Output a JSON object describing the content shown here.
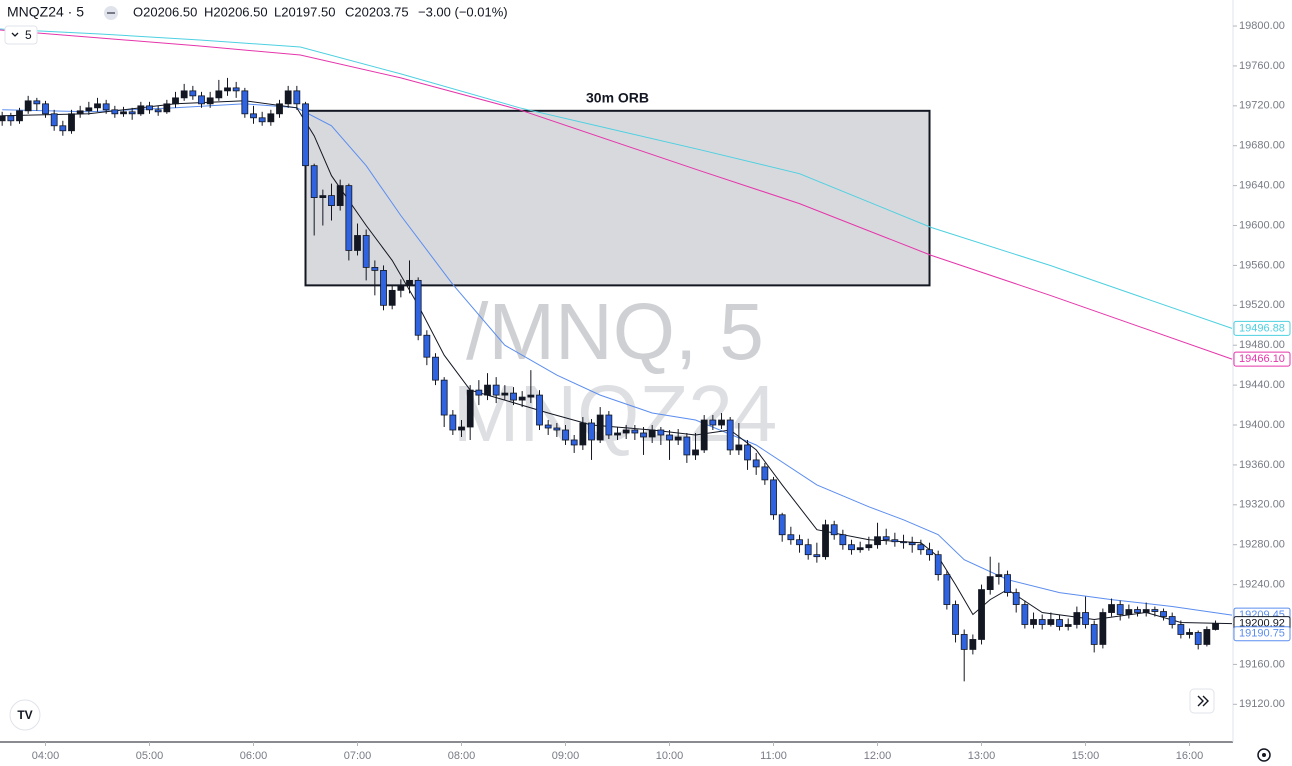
{
  "header": {
    "symbol": "MNQZ24 · 5",
    "open": "O20206.50",
    "high": "H20206.50",
    "low": "L20197.50",
    "close": "C20203.75",
    "change": "−3.00 (−0.01%)",
    "interval": "5"
  },
  "chart_data": {
    "type": "candlestick",
    "watermark": {
      "line1": "/MNQ, 5",
      "line2": "MNQZ24"
    },
    "up_color": "#131722",
    "down_color": "#2f63e0",
    "xlim": [
      -0.25,
      141.9
    ],
    "xticks": [
      {
        "value": 5,
        "label": "04:00"
      },
      {
        "value": 17,
        "label": "05:00"
      },
      {
        "value": 29,
        "label": "06:00"
      },
      {
        "value": 41,
        "label": "07:00"
      },
      {
        "value": 53,
        "label": "08:00"
      },
      {
        "value": 65,
        "label": "09:00"
      },
      {
        "value": 77,
        "label": "10:00"
      },
      {
        "value": 89,
        "label": "11:00"
      },
      {
        "value": 101,
        "label": "12:00"
      },
      {
        "value": 113,
        "label": "13:00"
      },
      {
        "value": 125,
        "label": "15:00"
      },
      {
        "value": 137,
        "label": "16:00"
      }
    ],
    "ylim": [
      19082.2,
      19826.1
    ],
    "yticks": [
      {
        "value": 19120,
        "label": "19120.00"
      },
      {
        "value": 19160,
        "label": "19160.00"
      },
      {
        "value": 19200,
        "label": "19200.00"
      },
      {
        "value": 19240,
        "label": "19240.00"
      },
      {
        "value": 19280,
        "label": "19280.00"
      },
      {
        "value": 19320,
        "label": "19320.00"
      },
      {
        "value": 19360,
        "label": "19360.00"
      },
      {
        "value": 19400,
        "label": "19400.00"
      },
      {
        "value": 19440,
        "label": "19440.00"
      },
      {
        "value": 19480,
        "label": "19480.00"
      },
      {
        "value": 19520,
        "label": "19520.00"
      },
      {
        "value": 19560,
        "label": "19560.00"
      },
      {
        "value": 19600,
        "label": "19600.00"
      },
      {
        "value": 19640,
        "label": "19640.00"
      },
      {
        "value": 19680,
        "label": "19680.00"
      },
      {
        "value": 19720,
        "label": "19720.00"
      },
      {
        "value": 19760,
        "label": "19760.00"
      },
      {
        "value": 19800,
        "label": "19800.00"
      }
    ],
    "candles": {
      "open": [
        19705,
        19710,
        19705,
        19715,
        19725,
        19722,
        19712,
        19700,
        19695,
        19712,
        19715,
        19718,
        19722,
        19716,
        19712,
        19714,
        19712,
        19720,
        19716,
        19714,
        19722,
        19728,
        19735,
        19730,
        19722,
        19728,
        19735,
        19738,
        19735,
        19712,
        19708,
        19704,
        19712,
        19722,
        19735,
        19722,
        19660,
        19628,
        19630,
        19620,
        19640,
        19575,
        19590,
        19558,
        19555,
        19520,
        19535,
        19540,
        19545,
        19490,
        19468,
        19445,
        19410,
        19395,
        19398,
        19435,
        19430,
        19440,
        19430,
        19432,
        19425,
        19428,
        19430,
        19400,
        19397,
        19395,
        19385,
        19380,
        19402,
        19385,
        19410,
        19390,
        19392,
        19395,
        19392,
        19388,
        19395,
        19390,
        19385,
        19388,
        19370,
        19375,
        19405,
        19400,
        19405,
        19375,
        19380,
        19365,
        19358,
        19345,
        19310,
        19290,
        19285,
        19280,
        19270,
        19268,
        19300,
        19290,
        19280,
        19275,
        19277,
        19280,
        19288,
        19285,
        19283,
        19282,
        19280,
        19275,
        19270,
        19250,
        19220,
        19190,
        19175,
        19185,
        19235,
        19248,
        19250,
        19232,
        19220,
        19200,
        19205,
        19200,
        19205,
        19198,
        19200,
        19212,
        19200,
        19180,
        19212,
        19220,
        19210,
        19215,
        19212,
        19215,
        19213,
        19208,
        19200,
        19190,
        19192,
        19180,
        19195
      ],
      "high": [
        19714,
        19713,
        19718,
        19730,
        19728,
        19725,
        19716,
        19705,
        19716,
        19720,
        19724,
        19728,
        19726,
        19720,
        19719,
        19718,
        19724,
        19724,
        19720,
        19726,
        19734,
        19742,
        19740,
        19734,
        19734,
        19746,
        19748,
        19744,
        19738,
        19720,
        19714,
        19716,
        19726,
        19740,
        19740,
        19724,
        19662,
        19636,
        19642,
        19646,
        19642,
        19602,
        19596,
        19565,
        19560,
        19540,
        19546,
        19565,
        19548,
        19495,
        19472,
        19448,
        19415,
        19405,
        19440,
        19445,
        19452,
        19448,
        19440,
        19438,
        19434,
        19455,
        19435,
        19405,
        19402,
        19400,
        19390,
        19408,
        19406,
        19418,
        19414,
        19398,
        19400,
        19400,
        19398,
        19400,
        19398,
        19395,
        19396,
        19392,
        19392,
        19410,
        19410,
        19412,
        19408,
        19402,
        19385,
        19372,
        19362,
        19348,
        19312,
        19298,
        19290,
        19286,
        19282,
        19305,
        19304,
        19295,
        19285,
        19283,
        19288,
        19302,
        19296,
        19292,
        19290,
        19288,
        19285,
        19282,
        19274,
        19254,
        19224,
        19195,
        19190,
        19240,
        19268,
        19262,
        19254,
        19236,
        19224,
        19212,
        19210,
        19212,
        19210,
        19206,
        19218,
        19228,
        19204,
        19216,
        19226,
        19224,
        19220,
        19218,
        19222,
        19218,
        19216,
        19212,
        19204,
        19196,
        19194,
        19198,
        19204
      ],
      "low": [
        19700,
        19700,
        19702,
        19712,
        19715,
        19708,
        19695,
        19690,
        19692,
        19708,
        19711,
        19714,
        19712,
        19708,
        19709,
        19706,
        19710,
        19712,
        19710,
        19712,
        19718,
        19725,
        19726,
        19718,
        19718,
        19725,
        19730,
        19728,
        19708,
        19702,
        19700,
        19700,
        19708,
        19718,
        19716,
        19655,
        19590,
        19600,
        19605,
        19615,
        19565,
        19570,
        19545,
        19530,
        19515,
        19516,
        19528,
        19532,
        19485,
        19460,
        19440,
        19398,
        19390,
        19388,
        19385,
        19420,
        19425,
        19422,
        19425,
        19420,
        19418,
        19422,
        19395,
        19390,
        19388,
        19380,
        19372,
        19375,
        19365,
        19382,
        19386,
        19385,
        19386,
        19385,
        19370,
        19382,
        19380,
        19365,
        19380,
        19362,
        19365,
        19372,
        19395,
        19396,
        19370,
        19370,
        19355,
        19350,
        19340,
        19305,
        19283,
        19280,
        19272,
        19265,
        19262,
        19265,
        19285,
        19275,
        19270,
        19272,
        19274,
        19276,
        19280,
        19278,
        19276,
        19272,
        19270,
        19264,
        19244,
        19215,
        19182,
        19143,
        19170,
        19180,
        19230,
        19240,
        19228,
        19212,
        19196,
        19196,
        19195,
        19198,
        19194,
        19194,
        19196,
        19196,
        19172,
        19176,
        19208,
        19204,
        19206,
        19208,
        19208,
        19208,
        19204,
        19196,
        19186,
        19186,
        19175,
        19178,
        19194
      ],
      "close": [
        19710,
        19705,
        19715,
        19725,
        19722,
        19712,
        19700,
        19695,
        19712,
        19715,
        19718,
        19722,
        19716,
        19712,
        19714,
        19712,
        19720,
        19716,
        19714,
        19722,
        19728,
        19735,
        19730,
        19722,
        19728,
        19735,
        19738,
        19735,
        19712,
        19708,
        19704,
        19712,
        19722,
        19735,
        19722,
        19660,
        19628,
        19630,
        19620,
        19640,
        19575,
        19590,
        19558,
        19555,
        19520,
        19535,
        19540,
        19545,
        19490,
        19468,
        19445,
        19410,
        19395,
        19398,
        19435,
        19430,
        19440,
        19430,
        19432,
        19425,
        19428,
        19430,
        19400,
        19397,
        19395,
        19385,
        19380,
        19402,
        19385,
        19410,
        19390,
        19392,
        19395,
        19392,
        19388,
        19395,
        19390,
        19385,
        19388,
        19370,
        19375,
        19405,
        19400,
        19405,
        19375,
        19380,
        19365,
        19358,
        19345,
        19310,
        19290,
        19285,
        19280,
        19270,
        19268,
        19300,
        19290,
        19280,
        19275,
        19277,
        19280,
        19288,
        19285,
        19283,
        19282,
        19280,
        19275,
        19270,
        19250,
        19220,
        19190,
        19175,
        19185,
        19235,
        19248,
        19250,
        19232,
        19220,
        19200,
        19205,
        19200,
        19205,
        19198,
        19200,
        19212,
        19200,
        19180,
        19212,
        19220,
        19210,
        19215,
        19212,
        19215,
        19213,
        19208,
        19200,
        19190,
        19192,
        19180,
        19195,
        19201
      ]
    },
    "lines": [
      {
        "color": "#4dd0e1",
        "x": [
          -0.25,
          11.3,
          22.8,
          34.4,
          46,
          59.7,
          80.5,
          92,
          107.2,
          120.9,
          141.9
        ],
        "values": [
          19797,
          19792,
          19786,
          19779,
          19752,
          19718,
          19676,
          19652,
          19598,
          19560,
          19496.88
        ]
      },
      {
        "color": "#e535ab",
        "x": [
          -0.25,
          11.3,
          22.8,
          34.4,
          46,
          59.7,
          80.5,
          92,
          107.2,
          120.9,
          141.9
        ],
        "values": [
          19796,
          19788,
          19780,
          19771,
          19748,
          19716,
          19655,
          19622,
          19570,
          19530,
          19466.1
        ]
      },
      {
        "color": "#5b8def",
        "x": [
          0,
          10,
          20,
          28,
          34,
          38,
          42,
          46,
          52,
          58,
          64,
          69,
          75,
          80,
          87,
          94,
          100,
          104,
          108,
          111,
          116,
          122,
          128,
          135,
          141.9
        ],
        "values": [
          19716,
          19714,
          19718,
          19722,
          19718,
          19700,
          19660,
          19610,
          19541,
          19480,
          19450,
          19430,
          19412,
          19405,
          19380,
          19340,
          19318,
          19305,
          19290,
          19265,
          19245,
          19232,
          19225,
          19218,
          19209.45
        ]
      },
      {
        "color": "#131722",
        "x": [
          0,
          10,
          20,
          28,
          34,
          36,
          38,
          42,
          45,
          48,
          51,
          54,
          58,
          63,
          68,
          75,
          80,
          84,
          87,
          90,
          94,
          100,
          106,
          108,
          110,
          112,
          114,
          116,
          120,
          126,
          132,
          136,
          141.9
        ],
        "values": [
          19710,
          19712,
          19722,
          19725,
          19718,
          19690,
          19650,
          19600,
          19565,
          19520,
          19470,
          19435,
          19425,
          19412,
          19400,
          19395,
          19390,
          19395,
          19375,
          19340,
          19295,
          19285,
          19282,
          19268,
          19240,
          19210,
          19225,
          19235,
          19212,
          19205,
          19212,
          19202,
          19200.92
        ]
      }
    ],
    "orb": {
      "label": "30m ORB",
      "x": [
        35,
        107
      ],
      "y": [
        19540,
        19715
      ]
    },
    "price_labels": [
      {
        "value": 19496.88,
        "color": "#4dd0e1"
      },
      {
        "value": {
          "value": 19466.1,
          "label": "19466.10"
        },
        "color": "#e535ab"
      },
      {
        "value": 19209.45,
        "color": "#5b8def"
      },
      {
        "value": 19200.92,
        "color": "#131722"
      },
      {
        "value": 19190.75,
        "color": "#5b8def"
      }
    ]
  }
}
